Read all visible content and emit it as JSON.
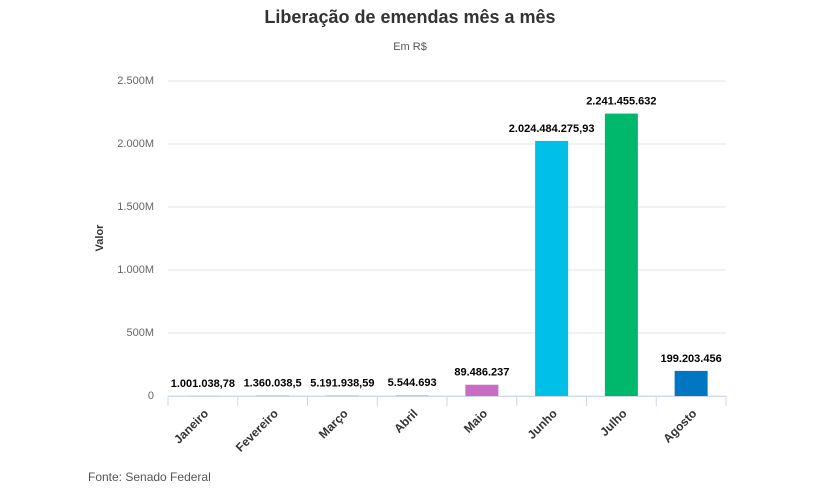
{
  "chart_data": {
    "type": "bar",
    "title": "Liberação de emendas mês a mês",
    "subtitle": "Em R$",
    "y_label": "Valor",
    "source": "Fonte: Senado Federal",
    "categories": [
      "Janeiro",
      "Fevereiro",
      "Março",
      "Abril",
      "Maio",
      "Junho",
      "Julho",
      "Agosto"
    ],
    "values": [
      1001038.78,
      1360038.5,
      5191938.59,
      5544693,
      89486237,
      2024484275.93,
      2241455632,
      199203456
    ],
    "value_labels": [
      "1.001.038,78",
      "1.360.038,5",
      "5.191.938,59",
      "5.544.693",
      "89.486.237",
      "2.024.484.275,93",
      "2.241.455.632",
      "199.203.456"
    ],
    "colors": [
      "#7cb5ec",
      "#434348",
      "#90ed7d",
      "#f7a35c",
      "#c86dc1",
      "#00c0e8",
      "#00b86b",
      "#0077c0"
    ],
    "ylim": [
      0,
      2500000000
    ],
    "yticks": [
      0,
      {
        "value": 500000000,
        "label": "500M"
      },
      {
        "value": 1000000000,
        "label": "1.000M"
      },
      {
        "value": 1500000000,
        "label": "1.500M"
      },
      {
        "value": 2000000000,
        "label": "2.000M"
      },
      {
        "value": 2500000000,
        "label": "2.500M"
      }
    ],
    "grid": true
  }
}
